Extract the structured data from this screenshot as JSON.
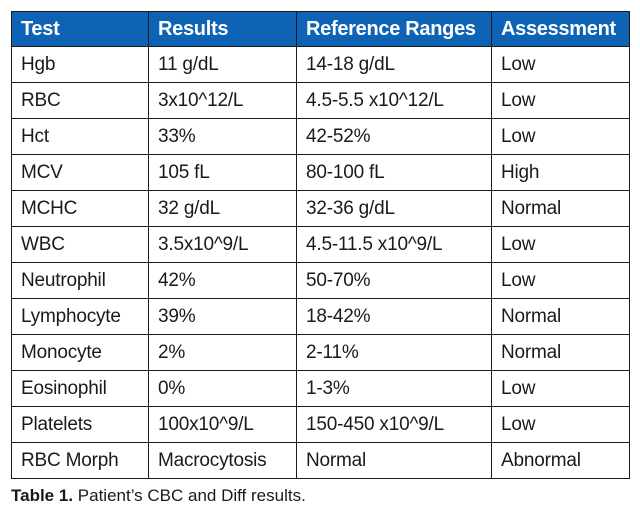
{
  "table": {
    "headers": [
      "Test",
      "Results",
      "Reference Ranges",
      "Assessment"
    ],
    "rows": [
      [
        "Hgb",
        "11 g/dL",
        "14-18 g/dL",
        "Low"
      ],
      [
        "RBC",
        "3x10^12/L",
        "4.5-5.5 x10^12/L",
        "Low"
      ],
      [
        "Hct",
        "33%",
        "42-52%",
        "Low"
      ],
      [
        "MCV",
        "105 fL",
        "80-100 fL",
        "High"
      ],
      [
        "MCHC",
        "32 g/dL",
        "32-36 g/dL",
        "Normal"
      ],
      [
        "WBC",
        "3.5x10^9/L",
        "4.5-11.5 x10^9/L",
        "Low"
      ],
      [
        "Neutrophil",
        "42%",
        "50-70%",
        "Low"
      ],
      [
        "Lymphocyte",
        "39%",
        "18-42%",
        "Normal"
      ],
      [
        "Monocyte",
        "2%",
        "2-11%",
        "Normal"
      ],
      [
        "Eosinophil",
        "0%",
        "1-3%",
        "Low"
      ],
      [
        "Platelets",
        "100x10^9/L",
        "150-450 x10^9/L",
        "Low"
      ],
      [
        "RBC Morph",
        "Macrocytosis",
        "Normal",
        "Abnormal"
      ]
    ],
    "header_color": "#0f63b4"
  },
  "caption": {
    "lead": "Table 1.",
    "text": " Patient’s CBC and Diff results."
  }
}
